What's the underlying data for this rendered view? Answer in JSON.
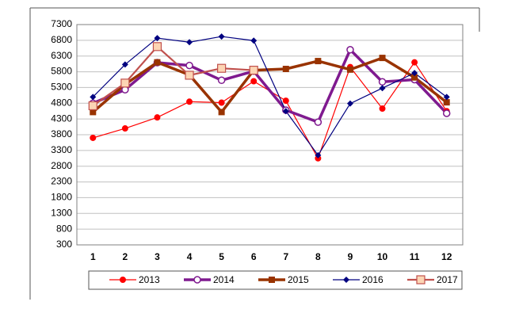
{
  "chart_data": {
    "type": "line",
    "categories": [
      "1",
      "2",
      "3",
      "4",
      "5",
      "6",
      "7",
      "8",
      "9",
      "10",
      "11",
      "12"
    ],
    "series": [
      {
        "name": "2013",
        "color": "#ff0000",
        "marker": "circle",
        "width": 1.2,
        "values": [
          3700,
          4000,
          4350,
          4850,
          4820,
          5500,
          4880,
          3050,
          5950,
          4630,
          6100,
          4550
        ]
      },
      {
        "name": "2014",
        "color": "#7f1a8f",
        "marker": "open-circle",
        "width": 3.5,
        "values": [
          4800,
          5230,
          6090,
          6000,
          5530,
          5820,
          4580,
          4200,
          6500,
          5480,
          5550,
          4480
        ]
      },
      {
        "name": "2015",
        "color": "#993300",
        "marker": "square",
        "width": 3.5,
        "values": [
          4520,
          5400,
          6100,
          5700,
          4520,
          5850,
          5890,
          6140,
          5870,
          6240,
          5620,
          4830
        ]
      },
      {
        "name": "2016",
        "color": "#000080",
        "marker": "diamond",
        "width": 1.2,
        "values": [
          5000,
          6030,
          6870,
          6740,
          6920,
          6790,
          4550,
          3150,
          4790,
          5280,
          5760,
          5000
        ]
      },
      {
        "name": "2017",
        "color": "#c0504d",
        "marker": "open-square",
        "width": 2.2,
        "values": [
          4720,
          5440,
          6600,
          5690,
          5910,
          5850,
          null,
          null,
          null,
          null,
          null,
          null
        ]
      }
    ],
    "ylim": [
      300,
      7300
    ],
    "yticks": [
      300,
      800,
      1300,
      1800,
      2300,
      2800,
      3300,
      3800,
      4300,
      4800,
      5300,
      5800,
      6300,
      6800,
      7300
    ],
    "grid": true,
    "legend": "bottom"
  }
}
